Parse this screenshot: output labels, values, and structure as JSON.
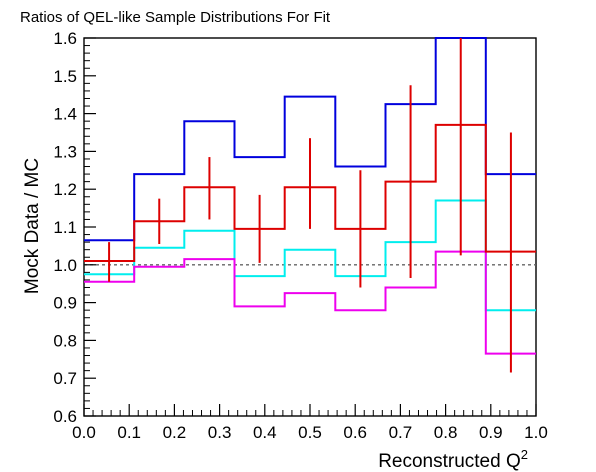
{
  "chart_data": {
    "type": "line",
    "title": "Ratios of QEL-like Sample Distributions For Fit",
    "xlabel": "Reconstructed Q",
    "xlabel_superscript": "2",
    "ylabel": "Mock Data / MC",
    "xlim": [
      0.0,
      1.0
    ],
    "ylim": [
      0.6,
      1.6
    ],
    "xticks": [
      "0.0",
      "0.1",
      "0.2",
      "0.3",
      "0.4",
      "0.5",
      "0.6",
      "0.7",
      "0.8",
      "0.9",
      "1.0"
    ],
    "yticks": [
      "0.6",
      "0.7",
      "0.8",
      "0.9",
      "1.0",
      "1.1",
      "1.2",
      "1.3",
      "1.4",
      "1.5",
      "1.6"
    ],
    "bin_edges": [
      0.0,
      0.111,
      0.222,
      0.333,
      0.444,
      0.556,
      0.667,
      0.778,
      0.889,
      1.0
    ],
    "reference_line": 1.0,
    "colors": {
      "blue": "#0000dd",
      "red": "#dd0000",
      "cyan": "#00eeee",
      "magenta": "#ee00ee",
      "reference": "#666666"
    },
    "series": [
      {
        "style": "step",
        "color": "#0000dd",
        "values": [
          1.065,
          1.24,
          1.38,
          1.285,
          1.445,
          1.26,
          1.425,
          1.6,
          1.24
        ]
      },
      {
        "style": "step",
        "color": "#00eeee",
        "values": [
          0.975,
          1.045,
          1.09,
          0.97,
          1.04,
          0.97,
          1.06,
          1.17,
          0.88
        ]
      },
      {
        "style": "step",
        "color": "#ee00ee",
        "values": [
          0.955,
          0.995,
          1.015,
          0.89,
          0.925,
          0.88,
          0.94,
          1.035,
          0.765
        ]
      },
      {
        "style": "step-errorbar",
        "color": "#dd0000",
        "values": [
          1.01,
          1.115,
          1.205,
          1.095,
          1.205,
          1.095,
          1.22,
          1.37,
          1.035
        ],
        "err_low": [
          0.055,
          0.06,
          0.085,
          0.09,
          0.11,
          0.155,
          0.255,
          0.345,
          0.32
        ],
        "err_high": [
          0.05,
          0.06,
          0.08,
          0.09,
          0.13,
          0.155,
          0.255,
          0.35,
          0.315
        ]
      }
    ]
  }
}
